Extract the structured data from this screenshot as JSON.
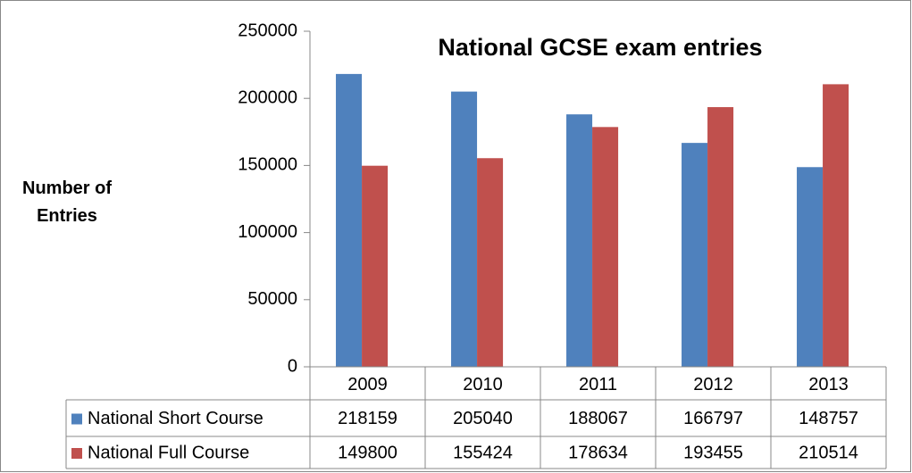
{
  "chart_data": {
    "type": "bar",
    "title": "National GCSE exam entries",
    "y_label": "Number of Entries",
    "categories": [
      "2009",
      "2010",
      "2011",
      "2012",
      "2013"
    ],
    "series": [
      {
        "name": "National Short Course",
        "color": "#4f81bd",
        "values": [
          218159,
          205040,
          188067,
          166797,
          148757
        ]
      },
      {
        "name": "National Full Course",
        "color": "#c0504d",
        "values": [
          149800,
          155424,
          178634,
          193455,
          210514
        ]
      }
    ],
    "ylim": [
      0,
      250000
    ],
    "yticks": [
      0,
      50000,
      100000,
      150000,
      200000,
      250000
    ],
    "grid": false,
    "data_table": true
  }
}
